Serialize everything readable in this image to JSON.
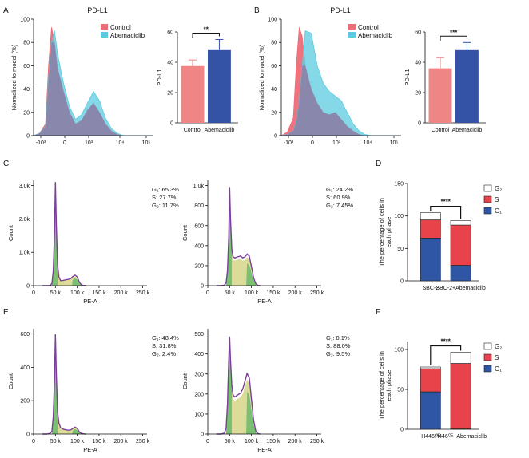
{
  "panel_labels": {
    "A": "A",
    "B": "B",
    "C": "C",
    "D": "D",
    "E": "E",
    "F": "F"
  },
  "colors": {
    "control": "#ee6c78",
    "abemaciclib": "#5ccbe0",
    "overlap": "#8c7fa8",
    "bar_control": "#f08585",
    "bar_abemaciclib": "#3453a6",
    "g1": "#2f55a5",
    "s": "#e8434a",
    "g2": "#ffffff",
    "cc_fill": "#dcdc9a",
    "cc_g1g2": "#7bbf72",
    "cc_line": "#7a3f98"
  },
  "chart_data": [
    {
      "panel": "A",
      "type": "area",
      "title": "PD-L1",
      "xlabel": "",
      "ylabel": "Normalized to model (%)",
      "xticks": [
        "-10³",
        "0",
        "10³",
        "10⁴",
        "10⁵"
      ],
      "yticks": [
        "0",
        "20",
        "40",
        "60",
        "80",
        "100"
      ],
      "ylim": [
        0,
        100
      ],
      "legend": [
        "Control",
        "Abemaciclib"
      ],
      "x": [
        0,
        0.1,
        0.2,
        0.25,
        0.3,
        0.35,
        0.4,
        0.5,
        0.6,
        0.7,
        0.8,
        0.9,
        1.0,
        1.1,
        1.2,
        1.3,
        1.4,
        1.5,
        1.6,
        1.7,
        1.8,
        1.9,
        2.0
      ],
      "series": [
        {
          "name": "Control",
          "values": [
            0,
            2,
            10,
            60,
            93,
            80,
            58,
            38,
            20,
            10,
            13,
            22,
            28,
            20,
            10,
            4,
            1,
            0,
            0,
            0,
            0,
            0,
            0
          ]
        },
        {
          "name": "Abemaciclib",
          "values": [
            0,
            2,
            8,
            50,
            80,
            90,
            70,
            45,
            25,
            14,
            18,
            28,
            38,
            30,
            15,
            6,
            2,
            0,
            0,
            0,
            0,
            0,
            0
          ]
        }
      ]
    },
    {
      "panel": "A",
      "type": "bar",
      "title": "",
      "categories": [
        "Control",
        "Abemaciclib"
      ],
      "values": [
        37.5,
        48
      ],
      "errors": [
        4,
        7
      ],
      "ylabel": "PD-L1",
      "ylim": [
        0,
        60
      ],
      "yticks": [
        "0",
        "20",
        "40",
        "60"
      ],
      "significance": "**"
    },
    {
      "panel": "B",
      "type": "area",
      "title": "PD-L1",
      "xlabel": "",
      "ylabel": "Normalized to model (%)",
      "xticks": [
        "-10³",
        "0",
        "10³",
        "10⁴",
        "10⁵"
      ],
      "yticks": [
        "0",
        "20",
        "40",
        "60",
        "80",
        "100"
      ],
      "ylim": [
        0,
        100
      ],
      "legend": [
        "Control",
        "Abemaciclib"
      ],
      "x": [
        0,
        0.1,
        0.2,
        0.25,
        0.3,
        0.35,
        0.4,
        0.5,
        0.6,
        0.7,
        0.8,
        0.9,
        1.0,
        1.1,
        1.2,
        1.3,
        1.4,
        1.5,
        1.6,
        1.7,
        1.8,
        1.9,
        2.0
      ],
      "series": [
        {
          "name": "Control",
          "values": [
            0,
            3,
            15,
            60,
            93,
            85,
            60,
            40,
            28,
            20,
            18,
            20,
            14,
            8,
            4,
            1,
            0,
            0,
            0,
            0,
            0,
            0,
            0
          ]
        },
        {
          "name": "Abemaciclib",
          "values": [
            0,
            1,
            4,
            12,
            30,
            60,
            90,
            88,
            60,
            45,
            38,
            34,
            30,
            20,
            10,
            4,
            1,
            0,
            0,
            0,
            0,
            0,
            0
          ]
        }
      ]
    },
    {
      "panel": "B",
      "type": "bar",
      "title": "",
      "categories": [
        "Control",
        "Abemaciclib"
      ],
      "values": [
        36,
        48
      ],
      "errors": [
        7,
        5
      ],
      "ylabel": "PD-L1",
      "ylim": [
        0,
        60
      ],
      "yticks": [
        "0",
        "20",
        "40",
        "60"
      ],
      "significance": "***"
    },
    {
      "panel": "C-left",
      "type": "area",
      "xlabel": "PE-A",
      "ylabel": "Count",
      "xticks": [
        "0",
        "50 k",
        "100 k",
        "150 k",
        "200 k",
        "250 k"
      ],
      "yticks": [
        "0",
        "1.0k",
        "2.0k",
        "3.0k"
      ],
      "xlim": [
        0,
        260
      ],
      "ylim": [
        0,
        3000
      ],
      "x": [
        20,
        30,
        38,
        42,
        45,
        48,
        50,
        52,
        55,
        58,
        62,
        68,
        75,
        80,
        85,
        90,
        95,
        100,
        105,
        110,
        115,
        120
      ],
      "values": [
        0,
        0,
        5,
        60,
        400,
        1500,
        2950,
        1800,
        600,
        250,
        140,
        150,
        170,
        180,
        200,
        260,
        300,
        250,
        90,
        20,
        3,
        0
      ],
      "stats": [
        "G₁: 65.3%",
        "S: 27.7%",
        "G₂: 11.7%"
      ]
    },
    {
      "panel": "C-right",
      "type": "area",
      "xlabel": "PE-A",
      "ylabel": "Count",
      "xticks": [
        "0",
        "50 k",
        "100 k",
        "150 k",
        "200 k",
        "250 k"
      ],
      "yticks": [
        "0",
        "200",
        "400",
        "600",
        "800",
        "1.0k"
      ],
      "xlim": [
        0,
        260
      ],
      "ylim": [
        0,
        1100
      ],
      "x": [
        20,
        30,
        38,
        42,
        45,
        48,
        50,
        52,
        55,
        58,
        62,
        68,
        75,
        80,
        85,
        90,
        95,
        100,
        105,
        110,
        115,
        120
      ],
      "values": [
        0,
        0,
        5,
        30,
        150,
        500,
        1030,
        700,
        380,
        300,
        290,
        300,
        310,
        290,
        300,
        330,
        310,
        200,
        80,
        20,
        3,
        0
      ],
      "stats": [
        "G₁: 24.2%",
        "S: 60.9%",
        "G₂: 7.45%"
      ]
    },
    {
      "panel": "D",
      "type": "bar",
      "stacked": true,
      "categories": [
        "SBC-2",
        "SBC-2+Abemaciclib"
      ],
      "series": [
        {
          "name": "G₁",
          "values": [
            66,
            24
          ]
        },
        {
          "name": "S",
          "values": [
            28,
            62
          ]
        },
        {
          "name": "G₂",
          "values": [
            11,
            7
          ]
        }
      ],
      "ylabel": "The percentage of cells in each phase",
      "ylim": [
        0,
        150
      ],
      "yticks": [
        "0",
        "50",
        "100",
        "150"
      ],
      "legend": [
        "G₂",
        "S",
        "G₁"
      ],
      "significance": "****"
    },
    {
      "panel": "E-left",
      "type": "area",
      "xlabel": "PE-A",
      "ylabel": "Count",
      "xticks": [
        "0",
        "50 k",
        "100 k",
        "150 k",
        "200 k",
        "250 k"
      ],
      "yticks": [
        "0",
        "200",
        "400",
        "600"
      ],
      "xlim": [
        0,
        260
      ],
      "ylim": [
        0,
        760
      ],
      "x": [
        20,
        30,
        38,
        42,
        45,
        48,
        50,
        52,
        55,
        58,
        62,
        68,
        75,
        80,
        85,
        90,
        95,
        100,
        105,
        110,
        115,
        120
      ],
      "values": [
        0,
        0,
        5,
        20,
        120,
        400,
        720,
        450,
        160,
        80,
        45,
        35,
        30,
        28,
        30,
        40,
        50,
        40,
        15,
        4,
        1,
        0
      ],
      "stats": [
        "G₁: 48.4%",
        "S: 31.8%",
        "G₂: 2.4%"
      ]
    },
    {
      "panel": "E-right",
      "type": "area",
      "xlabel": "PE-A",
      "ylabel": "Count",
      "xticks": [
        "0",
        "50 k",
        "100 k",
        "150 k",
        "200 k",
        "250 k"
      ],
      "yticks": [
        "0",
        "100",
        "200",
        "300",
        "400",
        "500"
      ],
      "xlim": [
        0,
        260
      ],
      "ylim": [
        0,
        540
      ],
      "x": [
        20,
        30,
        38,
        42,
        45,
        48,
        50,
        52,
        55,
        58,
        62,
        68,
        75,
        80,
        85,
        90,
        95,
        100,
        105,
        110,
        115,
        120
      ],
      "values": [
        0,
        0,
        5,
        30,
        150,
        380,
        500,
        380,
        250,
        200,
        190,
        200,
        210,
        230,
        270,
        310,
        290,
        180,
        70,
        15,
        2,
        0
      ],
      "stats": [
        "G₁: 0.1%",
        "S: 88.0%",
        "G₂: 9.5%"
      ]
    },
    {
      "panel": "F",
      "type": "bar",
      "stacked": true,
      "categories": [
        "H446ᴼᴱ",
        "H446ᴼᴱ+Abemaciclib"
      ],
      "series": [
        {
          "name": "G₁",
          "values": [
            47,
            0.5
          ]
        },
        {
          "name": "S",
          "values": [
            29,
            82
          ]
        },
        {
          "name": "G₂",
          "values": [
            2,
            14
          ]
        }
      ],
      "ylabel": "The percentage of cells in each phase",
      "ylim": [
        0,
        110
      ],
      "yticks": [
        "0",
        "50",
        "100"
      ],
      "legend": [
        "G₂",
        "S",
        "G₁"
      ],
      "significance": "****"
    }
  ]
}
